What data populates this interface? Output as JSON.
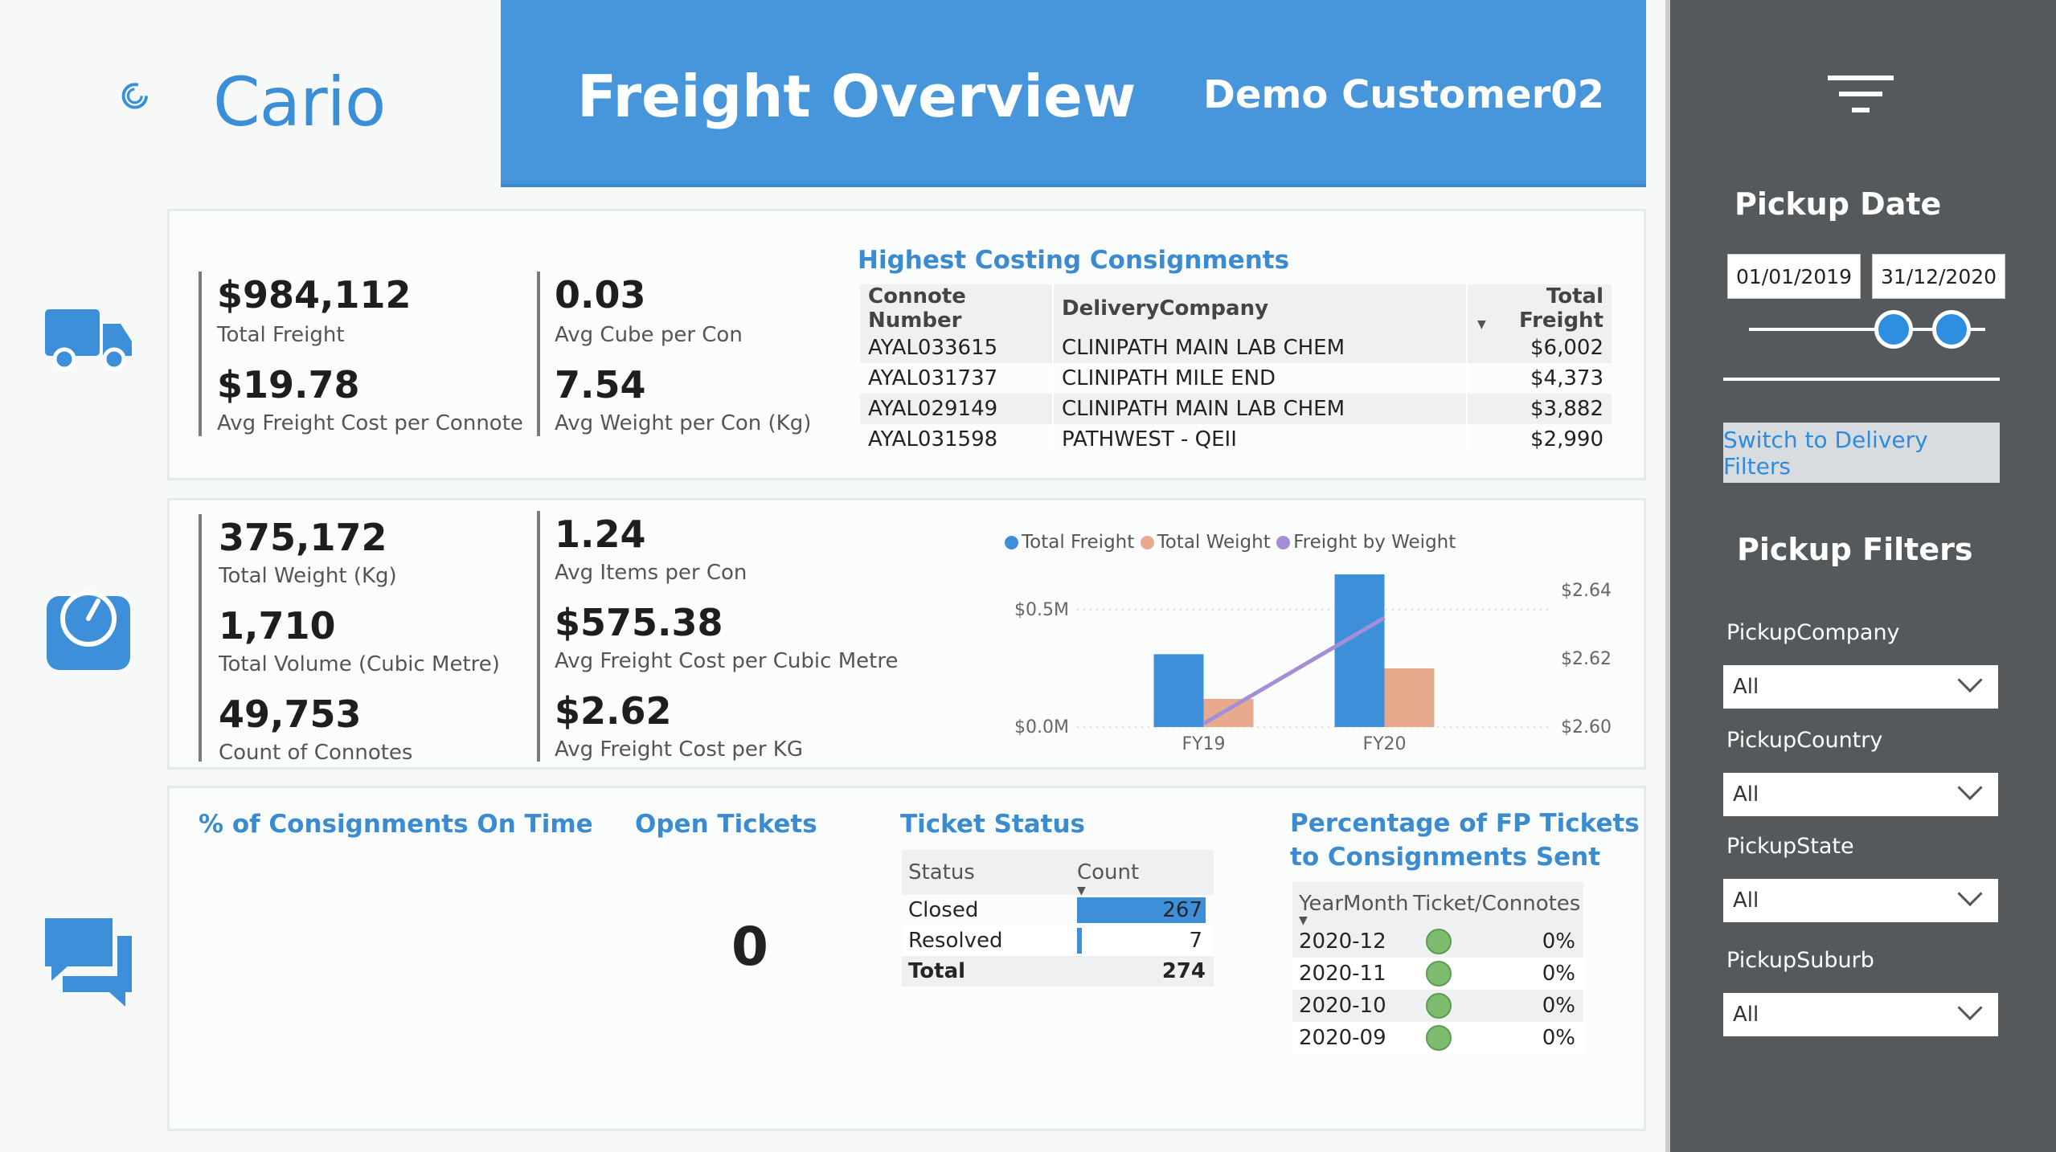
{
  "logo": {
    "text": "Cario"
  },
  "header": {
    "title": "Freight Overview",
    "customer": "Demo Customer02"
  },
  "kpis1": [
    {
      "value": "$984,112",
      "label": "Total Freight"
    },
    {
      "value": "$19.78",
      "label": "Avg Freight Cost per Connote"
    },
    {
      "value": "0.03",
      "label": "Avg Cube per Con"
    },
    {
      "value": "7.54",
      "label": "Avg Weight per Con (Kg)"
    }
  ],
  "consignments": {
    "title": "Highest Costing Consignments",
    "headers": [
      "Connote Number",
      "DeliveryCompany",
      "Total Freight"
    ],
    "rows": [
      [
        "AYAL033615",
        "CLINIPATH MAIN LAB CHEM",
        "$6,002"
      ],
      [
        "AYAL031737",
        "CLINIPATH MILE END",
        "$4,373"
      ],
      [
        "AYAL029149",
        "CLINIPATH MAIN LAB CHEM",
        "$3,882"
      ],
      [
        "AYAL031598",
        "PATHWEST - QEII",
        "$2,990"
      ]
    ]
  },
  "kpis2": [
    {
      "value": "375,172",
      "label": "Total Weight (Kg)"
    },
    {
      "value": "1,710",
      "label": "Total Volume (Cubic Metre)"
    },
    {
      "value": "49,753",
      "label": "Count of Connotes"
    },
    {
      "value": "1.24",
      "label": "Avg Items per Con"
    },
    {
      "value": "$575.38",
      "label": "Avg Freight Cost per Cubic Metre"
    },
    {
      "value": "$2.62",
      "label": "Avg Freight Cost per KG"
    }
  ],
  "chart_data": {
    "type": "bar",
    "categories": [
      "FY19",
      "FY20"
    ],
    "series": [
      {
        "name": "Total Freight",
        "values": [
          0.31,
          0.65
        ],
        "color": "#3e8fd9",
        "axis": "left"
      },
      {
        "name": "Total Weight",
        "values": [
          0.12,
          0.25
        ],
        "color": "#e8aa8c",
        "axis": "left"
      },
      {
        "name": "Freight by Weight",
        "values": [
          2.601,
          2.632
        ],
        "color": "#a48fd6",
        "axis": "right",
        "kind": "line"
      }
    ],
    "left_ticks": [
      "$0.0M",
      "$0.5M"
    ],
    "left_ylim": [
      0,
      0.65
    ],
    "right_ticks": [
      "$2.60",
      "$2.62",
      "$2.64"
    ],
    "right_ylim": [
      2.6,
      2.64
    ],
    "legend_position": "top"
  },
  "ontime": {
    "title": "% of Consignments On Time"
  },
  "open_tickets": {
    "title": "Open Tickets",
    "value": "0"
  },
  "ticket_status": {
    "title": "Ticket Status",
    "headers": [
      "Status",
      "Count"
    ],
    "rows": [
      {
        "status": "Closed",
        "count": "267",
        "fraction": 1.0
      },
      {
        "status": "Resolved",
        "count": "7",
        "fraction": 0.026
      }
    ],
    "total_label": "Total",
    "total": "274"
  },
  "fp_tickets": {
    "title_line1": "Percentage of FP Tickets",
    "title_line2": "to Consignments Sent",
    "headers": [
      "YearMonth",
      "Ticket/Connotes"
    ],
    "rows": [
      {
        "month": "2020-12",
        "pct": "0%"
      },
      {
        "month": "2020-11",
        "pct": "0%"
      },
      {
        "month": "2020-10",
        "pct": "0%"
      },
      {
        "month": "2020-09",
        "pct": "0%"
      }
    ]
  },
  "filters": {
    "pickup_date_title": "Pickup Date",
    "date_from": "01/01/2019",
    "date_to": "31/12/2020",
    "switch_label": "Switch to Delivery Filters",
    "pickup_filters_title": "Pickup Filters",
    "dropdowns": [
      {
        "label": "PickupCompany",
        "value": "All"
      },
      {
        "label": "PickupCountry",
        "value": "All"
      },
      {
        "label": "PickupState",
        "value": "All"
      },
      {
        "label": "PickupSuburb",
        "value": "All"
      }
    ]
  },
  "colors": {
    "accent": "#4796db",
    "pane": "#56595b",
    "status_green": "#7dbb6e"
  }
}
